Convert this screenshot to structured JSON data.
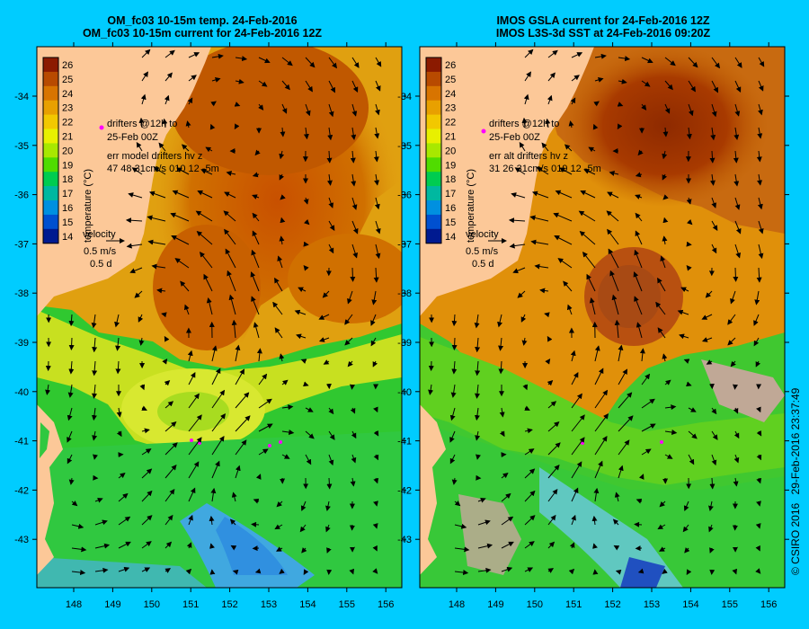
{
  "panels": [
    {
      "title_line1": "OM_fc03 10-15m temp. 24-Feb-2016",
      "title_line2": "OM_fc03 10-15m current for 24-Feb-2016 12Z",
      "drifters_line1": "drifters @12h to",
      "drifters_line2": "25-Feb 00Z",
      "err_line1": "err model drifters hv z",
      "err_line2": "47 48 31cm/s 010 12 -5m",
      "velocity_label": "velocity",
      "velocity_scale1": "0.5 m/s",
      "velocity_scale2": "0.5 d"
    },
    {
      "title_line1": "IMOS GSLA current for 24-Feb-2016 12Z",
      "title_line2": "IMOS L3S-3d SST at 24-Feb-2016 09:20Z",
      "drifters_line1": "drifters @12h to",
      "drifters_line2": "25-Feb 00Z",
      "err_line1": "err alt drifters hv z",
      "err_line2": "31 26 31cm/s 019 12 -5m",
      "velocity_label": "velocity",
      "velocity_scale1": "0.5 m/s",
      "velocity_scale2": "0.5 d"
    }
  ],
  "colorbar": {
    "label": "temperature (°C)",
    "ticks": [
      "26",
      "25",
      "24",
      "23",
      "22",
      "21",
      "20",
      "19",
      "18",
      "17",
      "16",
      "15",
      "14"
    ],
    "colors": [
      "#8b1a00",
      "#b84a00",
      "#d87400",
      "#e8a000",
      "#f2c800",
      "#e8f000",
      "#a8e800",
      "#50dc00",
      "#00cc50",
      "#00b8a0",
      "#0090e0",
      "#0050d0",
      "#001a90"
    ]
  },
  "lat_ticks": [
    "-34",
    "-35",
    "-36",
    "-37",
    "-38",
    "-39",
    "-40",
    "-41",
    "-42",
    "-43"
  ],
  "lon_ticks": [
    "148",
    "149",
    "150",
    "151",
    "152",
    "153",
    "154",
    "155",
    "156"
  ],
  "credit": {
    "copyright": "© CSIRO 2016",
    "timestamp": "29-Feb-2016 23:37:49"
  },
  "colors": {
    "background": "#00ccff",
    "land": "#fcc898",
    "drifter": "#ff00ff",
    "sea_unobserved": "#c0a896"
  }
}
